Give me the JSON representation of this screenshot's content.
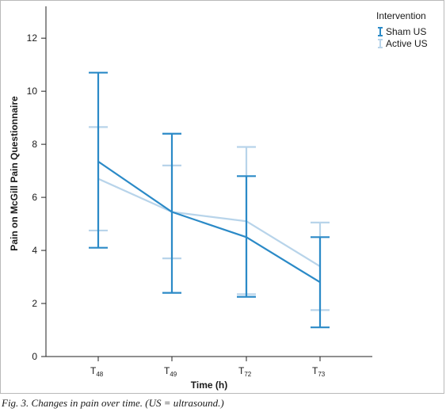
{
  "chart_data": {
    "type": "line",
    "x": [
      "T48",
      "T49",
      "T72",
      "T73"
    ],
    "x_tick_labels": [
      {
        "base": "T",
        "sub": "48"
      },
      {
        "base": "T",
        "sub": "49"
      },
      {
        "base": "T",
        "sub": "72"
      },
      {
        "base": "T",
        "sub": "73"
      }
    ],
    "xlabel": "Time (h)",
    "ylabel": "Pain on McGill Pain Questionnaire",
    "ylim": [
      0,
      13.2
    ],
    "yticks": [
      0,
      2,
      4,
      6,
      8,
      10,
      12
    ],
    "grid": false,
    "legend": {
      "title": "Intervention",
      "position": "top-right"
    },
    "series": [
      {
        "name": "Sham US",
        "color": "#2b8ac7",
        "values": [
          7.35,
          5.45,
          4.5,
          2.8
        ],
        "lower": [
          4.1,
          2.4,
          2.25,
          1.1
        ],
        "upper": [
          10.7,
          8.4,
          6.8,
          4.5
        ]
      },
      {
        "name": "Active US",
        "color": "#b8d4ea",
        "values": [
          6.7,
          5.45,
          5.1,
          3.4
        ],
        "lower": [
          4.75,
          3.7,
          2.35,
          1.75
        ],
        "upper": [
          8.65,
          7.2,
          7.9,
          5.05
        ]
      }
    ]
  },
  "caption": "Fig. 3. Changes in pain over time. (US = ultrasound.)"
}
